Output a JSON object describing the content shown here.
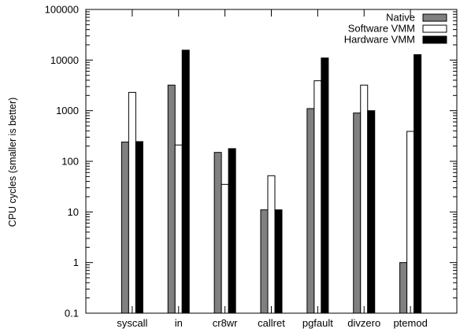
{
  "chart_data": {
    "type": "bar",
    "title": "",
    "xlabel": "",
    "ylabel": "CPU cycles (smaller is better)",
    "yscale": "log",
    "ylim": [
      0.1,
      100000
    ],
    "yticks": [
      0.1,
      1,
      10,
      100,
      1000,
      10000,
      100000
    ],
    "ytick_labels": [
      "0.1",
      "1",
      "10",
      "100",
      "1000",
      "10000",
      "100000"
    ],
    "grid": false,
    "legend_position": "top-right",
    "categories": [
      "syscall",
      "in",
      "cr8wr",
      "callret",
      "pgfault",
      "divzero",
      "ptemod"
    ],
    "series": [
      {
        "name": "Native",
        "color": "#808080",
        "values": [
          240,
          3200,
          150,
          11,
          1100,
          900,
          1
        ]
      },
      {
        "name": "Software VMM",
        "color": "#ffffff",
        "values": [
          2300,
          210,
          35,
          52,
          3900,
          3200,
          390
        ]
      },
      {
        "name": "Hardware VMM",
        "color": "#000000",
        "values": [
          245,
          15700,
          178,
          11,
          11000,
          1000,
          12800
        ]
      }
    ]
  }
}
